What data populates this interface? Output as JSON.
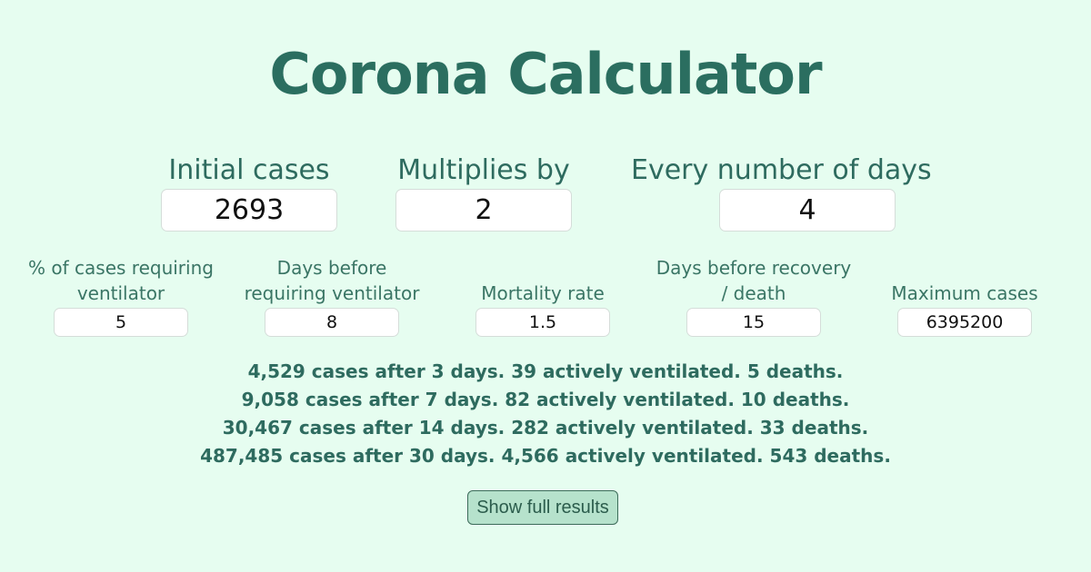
{
  "title": "Corona Calculator",
  "main_inputs": {
    "initial_cases": {
      "label": "Initial cases",
      "value": "2693"
    },
    "multiplies_by": {
      "label": "Multiplies by",
      "value": "2"
    },
    "every_days": {
      "label": "Every number of days",
      "value": "4"
    }
  },
  "secondary_inputs": {
    "ventilator_pct": {
      "label_line1": "% of cases requiring",
      "label_line2": "ventilator",
      "value": "5"
    },
    "days_before_ventilator": {
      "label_line1": "Days before",
      "label_line2": "requiring ventilator",
      "value": "8"
    },
    "mortality_rate": {
      "label_line1": "",
      "label_line2": "Mortality rate",
      "value": "1.5"
    },
    "days_before_recovery": {
      "label_line1": "Days before recovery",
      "label_line2": "/ death",
      "value": "15"
    },
    "maximum_cases": {
      "label_line1": "",
      "label_line2": "Maximum cases",
      "value": "6395200"
    }
  },
  "results": [
    "4,529 cases after 3 days. 39 actively ventilated. 5 deaths.",
    "9,058 cases after 7 days. 82 actively ventilated. 10 deaths.",
    "30,467 cases after 14 days. 282 actively ventilated. 33 deaths.",
    "487,485 cases after 30 days. 4,566 actively ventilated. 543 deaths."
  ],
  "show_full_results_label": "Show full results"
}
